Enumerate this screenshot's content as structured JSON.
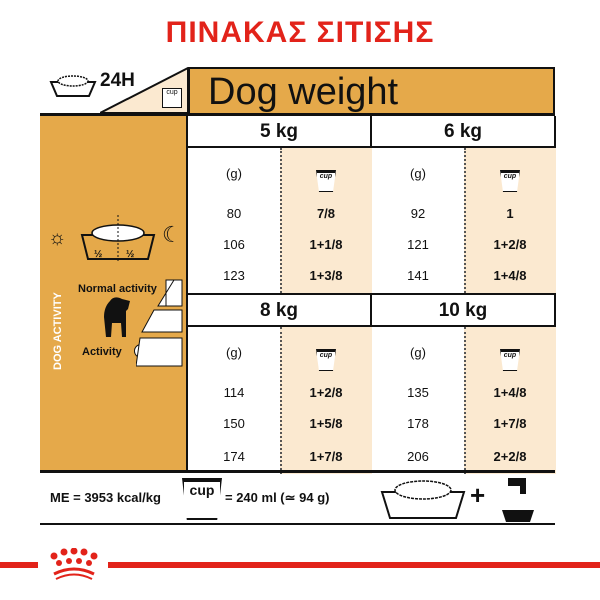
{
  "title": "ΠΙΝΑΚΑΣ ΣΙΤΙΣΗΣ",
  "top_left": {
    "label": "24H",
    "cup_label": "cup"
  },
  "header": {
    "title": "Dog weight"
  },
  "activity": {
    "vertical_label": "DOG ACTIVITY",
    "normal": "Normal activity",
    "high": "Activity",
    "portion_left": "½",
    "portion_right": "½"
  },
  "colors": {
    "accent": "#e5a94a",
    "cream": "#fbe9d0",
    "brand_red": "#e2231a"
  },
  "weights": [
    {
      "label": "5 kg",
      "unit": "(g)",
      "cup": "cup",
      "rows": [
        [
          "80",
          "7/8"
        ],
        [
          "106",
          "1+1/8"
        ],
        [
          "123",
          "1+3/8"
        ]
      ]
    },
    {
      "label": "6 kg",
      "unit": "(g)",
      "cup": "cup",
      "rows": [
        [
          "92",
          "1"
        ],
        [
          "121",
          "1+2/8"
        ],
        [
          "141",
          "1+4/8"
        ]
      ]
    },
    {
      "label": "8 kg",
      "unit": "(g)",
      "cup": "cup",
      "rows": [
        [
          "114",
          "1+2/8"
        ],
        [
          "150",
          "1+5/8"
        ],
        [
          "174",
          "1+7/8"
        ]
      ]
    },
    {
      "label": "10 kg",
      "unit": "(g)",
      "cup": "cup",
      "rows": [
        [
          "135",
          "1+4/8"
        ],
        [
          "178",
          "1+7/8"
        ],
        [
          "206",
          "2+2/8"
        ]
      ]
    }
  ],
  "footer": {
    "me": "ME = 3953 kcal/kg",
    "cup": "cup",
    "measure": "= 240 ml (≃ 94 g)"
  }
}
